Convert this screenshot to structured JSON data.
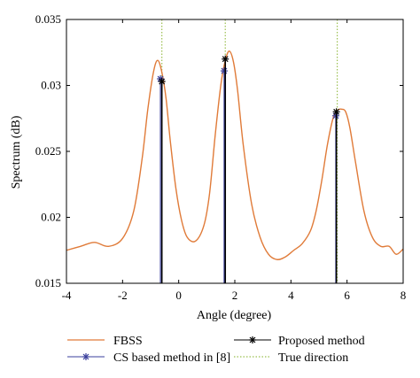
{
  "chart_data": {
    "type": "line",
    "xlabel": "Angle (degree)",
    "ylabel": "Spectrum (dB)",
    "xlim": [
      -4,
      8
    ],
    "ylim": [
      0.015,
      0.035
    ],
    "x_ticks": [
      -4,
      -2,
      0,
      2,
      4,
      6,
      8
    ],
    "x_tick_labels": [
      "-4",
      "-2",
      "0",
      "2",
      "4",
      "6",
      "8"
    ],
    "y_ticks": [
      0.015,
      0.02,
      0.025,
      0.03,
      0.035
    ],
    "y_tick_labels": [
      "0.015",
      "0.02",
      "0.025",
      "0.03",
      "0.035"
    ],
    "grid": false,
    "legend_position": "bottom",
    "series": [
      {
        "name": "FBSS",
        "kind": "line",
        "color": "#e07b39",
        "x": [
          -4.0,
          -3.5,
          -3.0,
          -2.5,
          -2.0,
          -1.6,
          -1.3,
          -1.1,
          -0.9,
          -0.75,
          -0.6,
          -0.45,
          -0.3,
          -0.1,
          0.1,
          0.3,
          0.6,
          0.9,
          1.1,
          1.3,
          1.5,
          1.65,
          1.8,
          1.95,
          2.1,
          2.3,
          2.6,
          2.9,
          3.2,
          3.5,
          3.8,
          4.1,
          4.4,
          4.7,
          4.9,
          5.1,
          5.3,
          5.5,
          5.65,
          5.8,
          5.95,
          6.1,
          6.3,
          6.6,
          6.9,
          7.2,
          7.5,
          7.75,
          8.0
        ],
        "y": [
          0.0175,
          0.0178,
          0.0181,
          0.0178,
          0.0184,
          0.0205,
          0.0245,
          0.0282,
          0.031,
          0.0319,
          0.031,
          0.029,
          0.0258,
          0.0222,
          0.0198,
          0.0185,
          0.0182,
          0.0194,
          0.0218,
          0.0262,
          0.03,
          0.0318,
          0.0326,
          0.0318,
          0.0296,
          0.0255,
          0.021,
          0.0185,
          0.0172,
          0.0168,
          0.017,
          0.0175,
          0.018,
          0.019,
          0.0205,
          0.0228,
          0.0255,
          0.0275,
          0.0281,
          0.0282,
          0.028,
          0.0268,
          0.0242,
          0.0205,
          0.0185,
          0.0178,
          0.0178,
          0.0172,
          0.0176
        ]
      },
      {
        "name": "CS based method in [8]",
        "kind": "stem",
        "color": "#3a3f9c",
        "marker": "asterisk",
        "x": [
          -0.65,
          1.62,
          5.6
        ],
        "y": [
          0.0305,
          0.0311,
          0.0277
        ]
      },
      {
        "name": "Proposed method",
        "kind": "stem",
        "color": "#000000",
        "marker": "asterisk",
        "x": [
          -0.6,
          1.66,
          5.62
        ],
        "y": [
          0.0303,
          0.032,
          0.028
        ]
      },
      {
        "name": "True direction",
        "kind": "vline",
        "color": "#9bbf4f",
        "style": "dotted",
        "x": [
          -0.6,
          1.66,
          5.65
        ]
      }
    ]
  }
}
